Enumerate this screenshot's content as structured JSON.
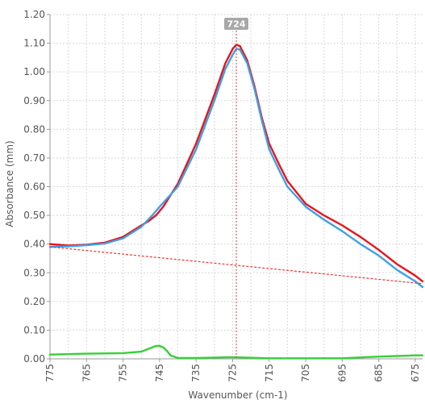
{
  "chart_data": {
    "type": "line",
    "xlabel": "Wavenumber (cm-1)",
    "ylabel": "Absorbance (mm)",
    "xlim": [
      775,
      673
    ],
    "ylim": [
      0,
      1.2
    ],
    "x_reversed": true,
    "grid": true,
    "x_ticks": [
      775,
      765,
      755,
      745,
      735,
      725,
      715,
      705,
      695,
      685,
      675
    ],
    "y_ticks": [
      "0.00",
      "0.10",
      "0.20",
      "0.30",
      "0.40",
      "0.50",
      "0.60",
      "0.70",
      "0.80",
      "0.90",
      "1.00",
      "1.10",
      "1.20"
    ],
    "marker": {
      "x": 724,
      "label": "724"
    },
    "colors": {
      "red": "#e8141c",
      "blue": "#3fa0e6",
      "green": "#35d135",
      "baseline": "#ee3333",
      "marker_bg": "#a8a8a8"
    },
    "series": [
      {
        "color": "red",
        "x": [
          775,
          770,
          765,
          760,
          755,
          750,
          748,
          746,
          744,
          740,
          735,
          730,
          727,
          725,
          724,
          723,
          721,
          719,
          717,
          715,
          712,
          710,
          705,
          700,
          695,
          690,
          685,
          680,
          675,
          673
        ],
        "y": [
          0.4,
          0.395,
          0.398,
          0.405,
          0.425,
          0.465,
          0.48,
          0.5,
          0.53,
          0.61,
          0.75,
          0.92,
          1.03,
          1.08,
          1.095,
          1.09,
          1.04,
          0.95,
          0.84,
          0.75,
          0.67,
          0.62,
          0.54,
          0.5,
          0.465,
          0.425,
          0.38,
          0.33,
          0.29,
          0.27
        ]
      },
      {
        "color": "blue",
        "x": [
          775,
          770,
          765,
          760,
          755,
          750,
          747,
          745,
          740,
          735,
          730,
          727,
          725,
          724,
          723,
          721,
          719,
          717,
          715,
          712,
          710,
          705,
          700,
          695,
          690,
          685,
          680,
          675,
          673
        ],
        "y": [
          0.39,
          0.392,
          0.396,
          0.402,
          0.42,
          0.46,
          0.5,
          0.53,
          0.6,
          0.73,
          0.9,
          1.01,
          1.06,
          1.08,
          1.078,
          1.03,
          0.94,
          0.83,
          0.73,
          0.65,
          0.6,
          0.53,
          0.485,
          0.445,
          0.4,
          0.36,
          0.31,
          0.27,
          0.25
        ]
      },
      {
        "color": "green",
        "x": [
          775,
          765,
          755,
          750,
          748,
          746,
          745,
          744,
          743,
          742,
          740,
          735,
          725,
          715,
          705,
          695,
          685,
          675,
          673
        ],
        "y": [
          0.015,
          0.018,
          0.02,
          0.025,
          0.035,
          0.045,
          0.045,
          0.04,
          0.028,
          0.012,
          0.003,
          0.003,
          0.006,
          0.002,
          0.002,
          0.002,
          0.008,
          0.012,
          0.012
        ]
      },
      {
        "color": "baseline",
        "dashed": true,
        "x": [
          775,
          673
        ],
        "y": [
          0.39,
          0.262
        ]
      }
    ]
  }
}
